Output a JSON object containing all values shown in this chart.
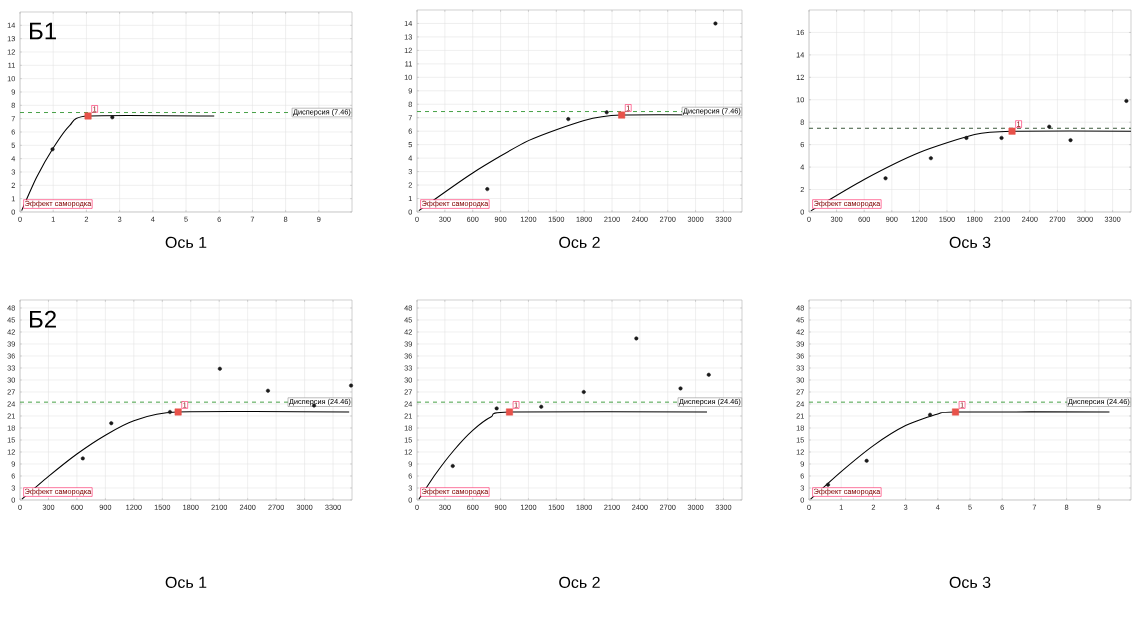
{
  "chart_data": [
    {
      "type": "scatter",
      "title": "Б1",
      "xlabel": "Ось 1",
      "xlim": [
        0,
        10
      ],
      "ylim": [
        0,
        15
      ],
      "xticks": [
        0,
        1,
        2,
        3,
        4,
        5,
        6,
        7,
        8,
        9
      ],
      "yticks": [
        0,
        1,
        2,
        3,
        4,
        5,
        6,
        7,
        8,
        9,
        10,
        11,
        12,
        13,
        14
      ],
      "grid": true,
      "series": [
        {
          "type": "line",
          "color": "#000000",
          "x": [
            0.05,
            0.5,
            1,
            1.5,
            2.05,
            5.85
          ],
          "values": [
            0.1,
            2.6,
            4.8,
            6.5,
            7.2,
            7.2
          ]
        },
        {
          "color": "#1a1a1a",
          "marker": "circle",
          "x": [
            0.98,
            2.78
          ],
          "values": [
            4.7,
            7.1
          ]
        },
        {
          "color": "#e8524a",
          "marker": "square",
          "x": [
            2.05
          ],
          "values": [
            7.2
          ]
        }
      ],
      "ref_lines": [
        {
          "axis": "y",
          "value": 7.46,
          "label": "Дисперсия (7.46)",
          "color": "#3a9a3a",
          "line_style": "dashed"
        }
      ],
      "annotations": [
        {
          "text": "Эффект самородка",
          "x": 0,
          "y": 0
        },
        {
          "text": "1",
          "x": 2.05,
          "y": 7.2
        }
      ]
    },
    {
      "type": "scatter",
      "xlabel": "Ось 2",
      "xlim": [
        0,
        3500
      ],
      "ylim": [
        0,
        15
      ],
      "xticks": [
        0,
        300,
        600,
        900,
        1200,
        1500,
        1800,
        2100,
        2400,
        2700,
        3000,
        3300
      ],
      "yticks": [
        0,
        1,
        2,
        3,
        4,
        5,
        6,
        7,
        8,
        9,
        10,
        11,
        12,
        13,
        14
      ],
      "grid": true,
      "series": [
        {
          "type": "line",
          "color": "#000000",
          "x": [
            20,
            600,
            1200,
            1800,
            2200,
            3430
          ],
          "values": [
            0.1,
            2.9,
            5.3,
            6.8,
            7.2,
            7.2
          ]
        },
        {
          "color": "#1a1a1a",
          "marker": "circle",
          "x": [
            757,
            1629,
            2043,
            3214
          ],
          "values": [
            1.7,
            6.9,
            7.4,
            14.0
          ]
        },
        {
          "color": "#e8524a",
          "marker": "square",
          "x": [
            2204
          ],
          "values": [
            7.2
          ]
        }
      ],
      "ref_lines": [
        {
          "axis": "y",
          "value": 7.46,
          "label": "Дисперсия (7.46)",
          "color": "#3a9a3a",
          "line_style": "dashed"
        }
      ],
      "annotations": [
        {
          "text": "Эффект самородка",
          "x": 0,
          "y": 0
        },
        {
          "text": "1",
          "x": 2204,
          "y": 7.2
        }
      ]
    },
    {
      "type": "scatter",
      "xlabel": "Ось 3",
      "xlim": [
        0,
        3500
      ],
      "ylim": [
        0,
        18
      ],
      "xticks": [
        0,
        300,
        600,
        900,
        1200,
        1500,
        1800,
        2100,
        2400,
        2700,
        3000,
        3300
      ],
      "yticks": [
        0,
        2,
        4,
        6,
        8,
        10,
        12,
        14,
        16
      ],
      "grid": true,
      "series": [
        {
          "type": "line",
          "color": "#000000",
          "x": [
            20,
            600,
            1200,
            1800,
            2200,
            3500
          ],
          "values": [
            0.1,
            2.9,
            5.3,
            6.9,
            7.2,
            7.2
          ]
        },
        {
          "color": "#1a1a1a",
          "marker": "circle",
          "x": [
            832,
            1325,
            1711,
            2093,
            2611,
            2843,
            3450
          ],
          "values": [
            3.0,
            4.8,
            6.6,
            6.6,
            7.6,
            6.4,
            9.9
          ]
        },
        {
          "color": "#e8524a",
          "marker": "square",
          "x": [
            2207
          ],
          "values": [
            7.2
          ]
        }
      ],
      "ref_lines": [
        {
          "axis": "y",
          "value": 7.46,
          "color": "#2e4e2e",
          "line_style": "dashed"
        }
      ],
      "annotations": [
        {
          "text": "Эффект самородка",
          "x": 0,
          "y": 0
        },
        {
          "text": "1",
          "x": 2207,
          "y": 7.2
        }
      ]
    },
    {
      "type": "scatter",
      "title": "Б2",
      "xlabel": "Ось 1",
      "xlim": [
        0,
        3500
      ],
      "ylim": [
        0,
        50
      ],
      "xticks": [
        0,
        300,
        600,
        900,
        1200,
        1500,
        1800,
        2100,
        2400,
        2700,
        3000,
        3300
      ],
      "yticks": [
        0,
        3,
        6,
        9,
        12,
        15,
        18,
        21,
        24,
        27,
        30,
        33,
        36,
        39,
        42,
        45,
        48
      ],
      "grid": true,
      "series": [
        {
          "type": "line",
          "color": "#000000",
          "x": [
            20,
            300,
            600,
            900,
            1200,
            1650,
            3470
          ],
          "values": [
            0.2,
            5.9,
            11.5,
            16.2,
            19.8,
            22.0,
            22.0
          ]
        },
        {
          "color": "#1a1a1a",
          "marker": "circle",
          "x": [
            662,
            962,
            1581,
            2107,
            2614,
            3100,
            3490
          ],
          "values": [
            10.4,
            19.2,
            22.0,
            32.8,
            27.3,
            23.6,
            28.6
          ]
        },
        {
          "color": "#e8524a",
          "marker": "square",
          "x": [
            1667
          ],
          "values": [
            22.0
          ]
        }
      ],
      "ref_lines": [
        {
          "axis": "y",
          "value": 24.46,
          "label": "Дисперсия (24.46)",
          "color": "#3a9a3a",
          "line_style": "dashed"
        }
      ],
      "annotations": [
        {
          "text": "Эффект самородка",
          "x": 0,
          "y": 0
        },
        {
          "text": "1",
          "x": 1667,
          "y": 22.0
        }
      ]
    },
    {
      "type": "scatter",
      "xlabel": "Ось 2",
      "xlim": [
        0,
        3500
      ],
      "ylim": [
        0,
        50
      ],
      "xticks": [
        0,
        300,
        600,
        900,
        1200,
        1500,
        1800,
        2100,
        2400,
        2700,
        3000,
        3300
      ],
      "yticks": [
        0,
        3,
        6,
        9,
        12,
        15,
        18,
        21,
        24,
        27,
        30,
        33,
        36,
        39,
        42,
        45,
        48
      ],
      "grid": true,
      "series": [
        {
          "type": "line",
          "color": "#000000",
          "x": [
            20,
            200,
            400,
            600,
            800,
            1000,
            3123
          ],
          "values": [
            0.2,
            6.5,
            12.5,
            17.4,
            20.8,
            22.0,
            22.0
          ]
        },
        {
          "color": "#1a1a1a",
          "marker": "circle",
          "x": [
            385,
            858,
            1338,
            1796,
            2362,
            2838,
            3142
          ],
          "values": [
            8.5,
            22.9,
            23.3,
            27.0,
            40.4,
            27.9,
            31.3
          ]
        },
        {
          "color": "#e8524a",
          "marker": "square",
          "x": [
            996
          ],
          "values": [
            22.0
          ]
        }
      ],
      "ref_lines": [
        {
          "axis": "y",
          "value": 24.46,
          "label": "Дисперсия (24.46)",
          "color": "#3a9a3a",
          "line_style": "dashed"
        }
      ],
      "annotations": [
        {
          "text": "Эффект самородка",
          "x": 0,
          "y": 0
        },
        {
          "text": "1",
          "x": 996,
          "y": 22.0
        }
      ]
    },
    {
      "type": "scatter",
      "xlabel": "Ось 3",
      "xlim": [
        0,
        10
      ],
      "ylim": [
        0,
        50
      ],
      "xticks": [
        0,
        1,
        2,
        3,
        4,
        5,
        6,
        7,
        8,
        9
      ],
      "yticks": [
        0,
        3,
        6,
        9,
        12,
        15,
        18,
        21,
        24,
        27,
        30,
        33,
        36,
        39,
        42,
        45,
        48
      ],
      "grid": true,
      "series": [
        {
          "type": "line",
          "color": "#000000",
          "x": [
            0.05,
            1,
            2,
            3,
            4,
            4.55,
            9.33
          ],
          "values": [
            0.2,
            7.1,
            13.6,
            18.6,
            21.5,
            22.0,
            22.0
          ]
        },
        {
          "color": "#1a1a1a",
          "marker": "circle",
          "x": [
            0.59,
            1.79,
            3.76
          ],
          "values": [
            3.8,
            9.8,
            21.3
          ]
        },
        {
          "color": "#e8524a",
          "marker": "square",
          "x": [
            4.55
          ],
          "values": [
            22.0
          ]
        }
      ],
      "ref_lines": [
        {
          "axis": "y",
          "value": 24.46,
          "label": "Дисперсия (24.46)",
          "color": "#3a9a3a",
          "line_style": "dashed"
        }
      ],
      "annotations": [
        {
          "text": "Эффект самородка",
          "x": 0,
          "y": 0
        },
        {
          "text": "1",
          "x": 4.55,
          "y": 22.0
        }
      ]
    }
  ]
}
